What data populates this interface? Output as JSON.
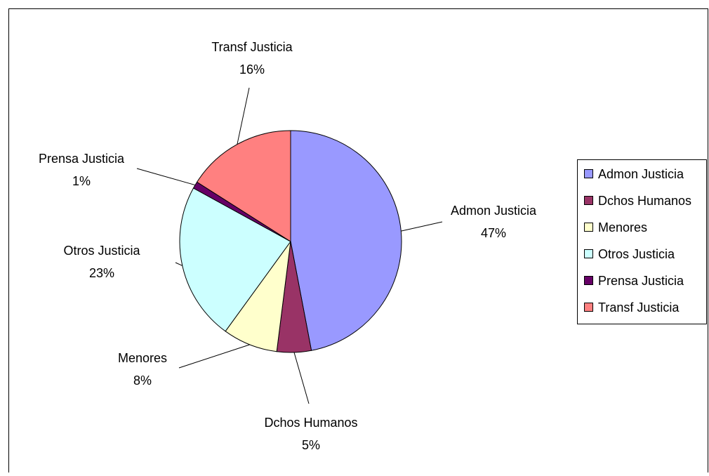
{
  "chart_data": {
    "type": "pie",
    "categories": [
      "Admon Justicia",
      "Dchos Humanos",
      "Menores",
      "Otros Justicia",
      "Prensa Justicia",
      "Transf Justicia"
    ],
    "values": [
      47,
      5,
      8,
      23,
      1,
      16
    ],
    "data_labels": [
      "47%",
      "5%",
      "8%",
      "23%",
      "1%",
      "16%"
    ],
    "colors": [
      "#9999FF",
      "#993366",
      "#FFFFCC",
      "#CCFFFF",
      "#660066",
      "#FF8080"
    ],
    "start_angle_deg": 0,
    "direction": "clockwise",
    "legend": {
      "position": "right",
      "entries": [
        "Admon Justicia",
        "Dchos Humanos",
        "Menores",
        "Otros Justicia",
        "Prensa Justicia",
        "Transf Justicia"
      ]
    }
  }
}
